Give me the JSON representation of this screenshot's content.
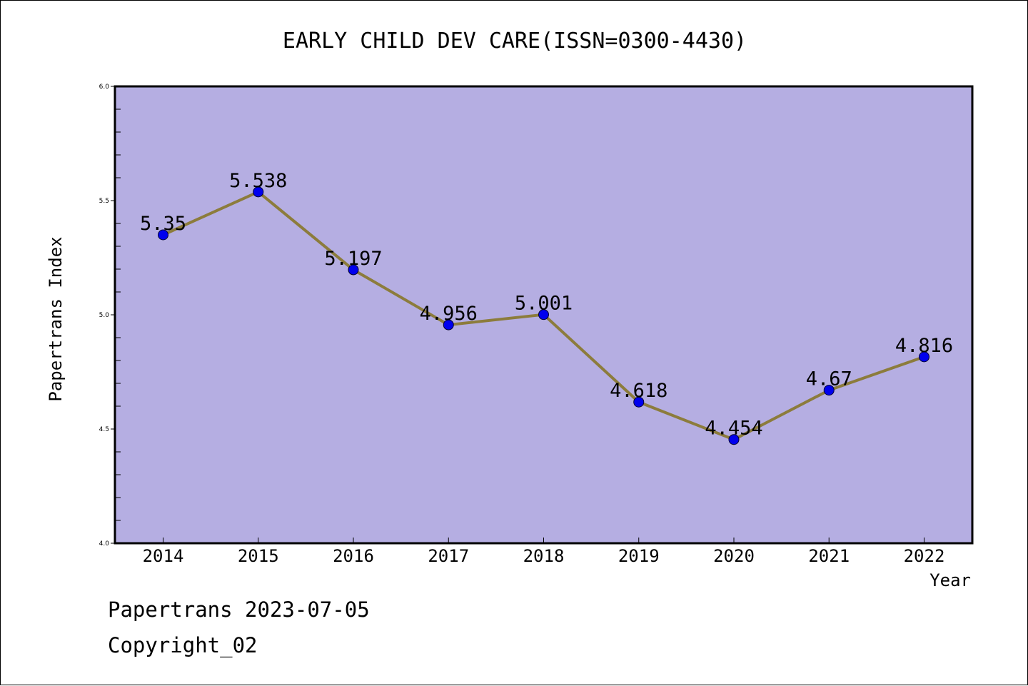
{
  "chart_data": {
    "type": "line",
    "title": "EARLY CHILD DEV CARE(ISSN=0300-4430)",
    "xlabel": "Year",
    "ylabel": "Papertrans Index",
    "categories": [
      "2014",
      "2015",
      "2016",
      "2017",
      "2018",
      "2019",
      "2020",
      "2021",
      "2022"
    ],
    "series": [
      {
        "values": [
          5.35,
          5.538,
          5.197,
          4.956,
          5.001,
          4.618,
          4.454,
          4.67,
          4.816
        ],
        "labels": [
          "5.35",
          "5.538",
          "5.197",
          "4.956",
          "5.001",
          "4.618",
          "4.454",
          "4.67",
          "4.816"
        ]
      }
    ],
    "ylim": [
      4.0,
      6.0
    ],
    "yticks": [
      "4.0",
      "4.5",
      "5.0",
      "5.5",
      "6.0"
    ],
    "grid": false,
    "colors": {
      "plot_background": "#b5aee2",
      "line": "#8c7c3c",
      "marker": "#0000ee"
    }
  },
  "footer": {
    "line1": "Papertrans 2023-07-05",
    "line2": "Copyright_02"
  }
}
